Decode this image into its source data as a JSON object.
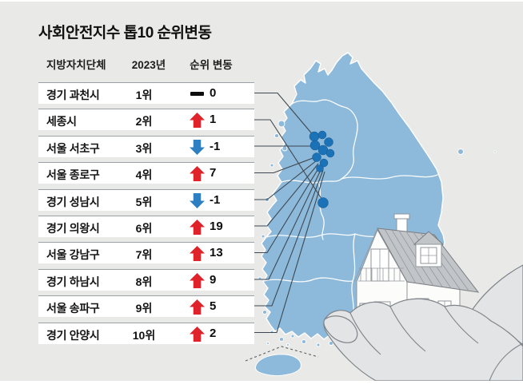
{
  "title": "사회안전지수 톱10 순위변동",
  "table": {
    "headers": [
      "지방자치단체",
      "2023년",
      "순위 변동"
    ],
    "rows": [
      {
        "name": "경기 과천시",
        "rank": "1위",
        "change": "0",
        "direction": "same"
      },
      {
        "name": "세종시",
        "rank": "2위",
        "change": "1",
        "direction": "up"
      },
      {
        "name": "서울 서초구",
        "rank": "3위",
        "change": "-1",
        "direction": "down"
      },
      {
        "name": "서울 종로구",
        "rank": "4위",
        "change": "7",
        "direction": "up"
      },
      {
        "name": "경기 성남시",
        "rank": "5위",
        "change": "-1",
        "direction": "down"
      },
      {
        "name": "경기 의왕시",
        "rank": "6위",
        "change": "19",
        "direction": "up"
      },
      {
        "name": "서울 강남구",
        "rank": "7위",
        "change": "13",
        "direction": "up"
      },
      {
        "name": "경기 하남시",
        "rank": "8위",
        "change": "9",
        "direction": "up"
      },
      {
        "name": "서울 송파구",
        "rank": "9위",
        "change": "5",
        "direction": "up"
      },
      {
        "name": "경기 안양시",
        "rank": "10위",
        "change": "2",
        "direction": "up"
      }
    ]
  },
  "icons": [
    "up-arrow-icon",
    "down-arrow-icon",
    "dash-icon",
    "korea-map",
    "map-marker",
    "house-in-hand-illustration"
  ],
  "colors": {
    "background": "#e9e9e7",
    "row_background": "#ffffff",
    "up": "#e0232b",
    "down": "#2e7fc2",
    "same": "#0d0d0d",
    "map_fill": "#8db9da",
    "marker": "#1b72b6",
    "connector_line": "#3d4852"
  },
  "chart_data": {
    "type": "table",
    "title": "사회안전지수 톱10 순위변동",
    "columns": [
      "지방자치단체",
      "2023년",
      "순위 변동"
    ],
    "rows": [
      [
        "경기 과천시",
        "1위",
        0
      ],
      [
        "세종시",
        "2위",
        1
      ],
      [
        "서울 서초구",
        "3위",
        -1
      ],
      [
        "서울 종로구",
        "4위",
        7
      ],
      [
        "경기 성남시",
        "5위",
        -1
      ],
      [
        "경기 의왕시",
        "6위",
        19
      ],
      [
        "서울 강남구",
        "7위",
        13
      ],
      [
        "경기 하남시",
        "8위",
        9
      ],
      [
        "서울 송파구",
        "9위",
        5
      ],
      [
        "경기 안양시",
        "10위",
        2
      ]
    ],
    "annotations": "각 지자체 위치가 대한민국 지도 위 파란 점으로 표시되고 표의 각 행과 선으로 연결됨 (수도권 밀집 + 세종시)"
  }
}
